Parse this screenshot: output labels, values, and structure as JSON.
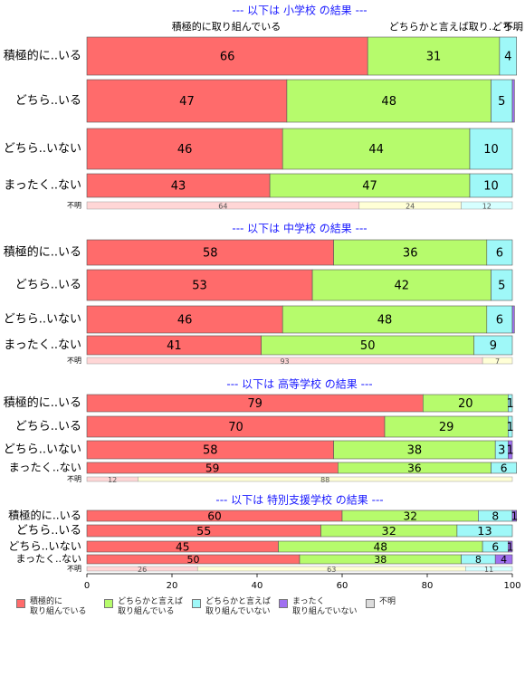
{
  "chart_data": [
    {
      "type": "stacked-barh",
      "title": "--- 以下は 小学校 の結果 ---",
      "header_labels": [
        "積極的に取り組んでいる",
        "どちらかと言えば取り...",
        "どち...",
        "不明"
      ],
      "categories": [
        "積極的に..いる",
        "どちら..いる",
        "どちら..いない",
        "まったく..ない"
      ],
      "series": [
        {
          "name": "積極的に\n取り組んでいる",
          "color": "#ff6b6b",
          "values": [
            66,
            47,
            46,
            43
          ]
        },
        {
          "name": "どちらかと言えば\n取り組んでいる",
          "color": "#b6fb6c",
          "values": [
            31,
            48,
            44,
            47
          ]
        },
        {
          "name": "どちらかと言えば\n取り組んでいない",
          "color": "#9ff8f8",
          "values": [
            4,
            5,
            10,
            10
          ]
        },
        {
          "name": "まったく\n取り組んでいない",
          "color": "#a070f0",
          "values": [
            0,
            0.5,
            0,
            0
          ]
        }
      ],
      "unknown": {
        "label": "不明",
        "values": [
          64,
          24,
          12
        ],
        "colors": [
          "#ffd6d6",
          "#ffffd6",
          "#d6ffff"
        ]
      },
      "xlim": [
        0,
        100
      ]
    },
    {
      "type": "stacked-barh",
      "title": "--- 以下は 中学校 の結果 ---",
      "categories": [
        "積極的に..いる",
        "どちら..いる",
        "どちら..いない",
        "まったく..ない"
      ],
      "series": [
        {
          "name": "積極的に\n取り組んでいる",
          "color": "#ff6b6b",
          "values": [
            58,
            53,
            46,
            41
          ]
        },
        {
          "name": "どちらかと言えば\n取り組んでいる",
          "color": "#b6fb6c",
          "values": [
            36,
            42,
            48,
            50
          ]
        },
        {
          "name": "どちらかと言えば\n取り組んでいない",
          "color": "#9ff8f8",
          "values": [
            6,
            5,
            6,
            9
          ]
        },
        {
          "name": "まったく\n取り組んでいない",
          "color": "#a070f0",
          "values": [
            0,
            0,
            0.5,
            0
          ]
        }
      ],
      "unknown": {
        "label": "不明",
        "values": [
          93,
          7
        ],
        "colors": [
          "#ffd6d6",
          "#ffffd6"
        ]
      },
      "xlim": [
        0,
        100
      ]
    },
    {
      "type": "stacked-barh",
      "title": "--- 以下は 高等学校 の結果 ---",
      "categories": [
        "積極的に..いる",
        "どちら..いる",
        "どちら..いない",
        "まったく..ない"
      ],
      "series": [
        {
          "name": "積極的に\n取り組んでいる",
          "color": "#ff6b6b",
          "values": [
            79,
            70,
            58,
            59
          ]
        },
        {
          "name": "どちらかと言えば\n取り組んでいる",
          "color": "#b6fb6c",
          "values": [
            20,
            29,
            38,
            36
          ]
        },
        {
          "name": "どちらかと言えば\n取り組んでいない",
          "color": "#9ff8f8",
          "values": [
            1,
            1,
            3,
            6
          ]
        },
        {
          "name": "まったく\n取り組んでいない",
          "color": "#a070f0",
          "values": [
            0,
            0,
            1,
            0
          ]
        }
      ],
      "unknown": {
        "label": "不明",
        "values": [
          12,
          88
        ],
        "colors": [
          "#ffd6d6",
          "#ffffd6"
        ]
      },
      "xlim": [
        0,
        100
      ]
    },
    {
      "type": "stacked-barh",
      "title": "--- 以下は 特別支援学校 の結果 ---",
      "categories": [
        "積極的に..いる",
        "どちら..いる",
        "どちら..いない",
        "まったく..ない"
      ],
      "series": [
        {
          "name": "積極的に\n取り組んでいる",
          "color": "#ff6b6b",
          "values": [
            60,
            55,
            45,
            50
          ]
        },
        {
          "name": "どちらかと言えば\n取り組んでいる",
          "color": "#b6fb6c",
          "values": [
            32,
            32,
            48,
            38
          ]
        },
        {
          "name": "どちらかと言えば\n取り組んでいない",
          "color": "#9ff8f8",
          "values": [
            8,
            13,
            6,
            8
          ]
        },
        {
          "name": "まったく\n取り組んでいない",
          "color": "#a070f0",
          "values": [
            1,
            0,
            1,
            4
          ]
        }
      ],
      "unknown": {
        "label": "不明",
        "values": [
          26,
          63,
          11
        ],
        "colors": [
          "#ffd6d6",
          "#ffffd6",
          "#d6ffff"
        ]
      },
      "xlim": [
        0,
        100
      ],
      "xticks": [
        0,
        20,
        40,
        60,
        80,
        100
      ]
    }
  ],
  "legend_extra": {
    "name": "不明",
    "color": "#dcdcdc"
  }
}
